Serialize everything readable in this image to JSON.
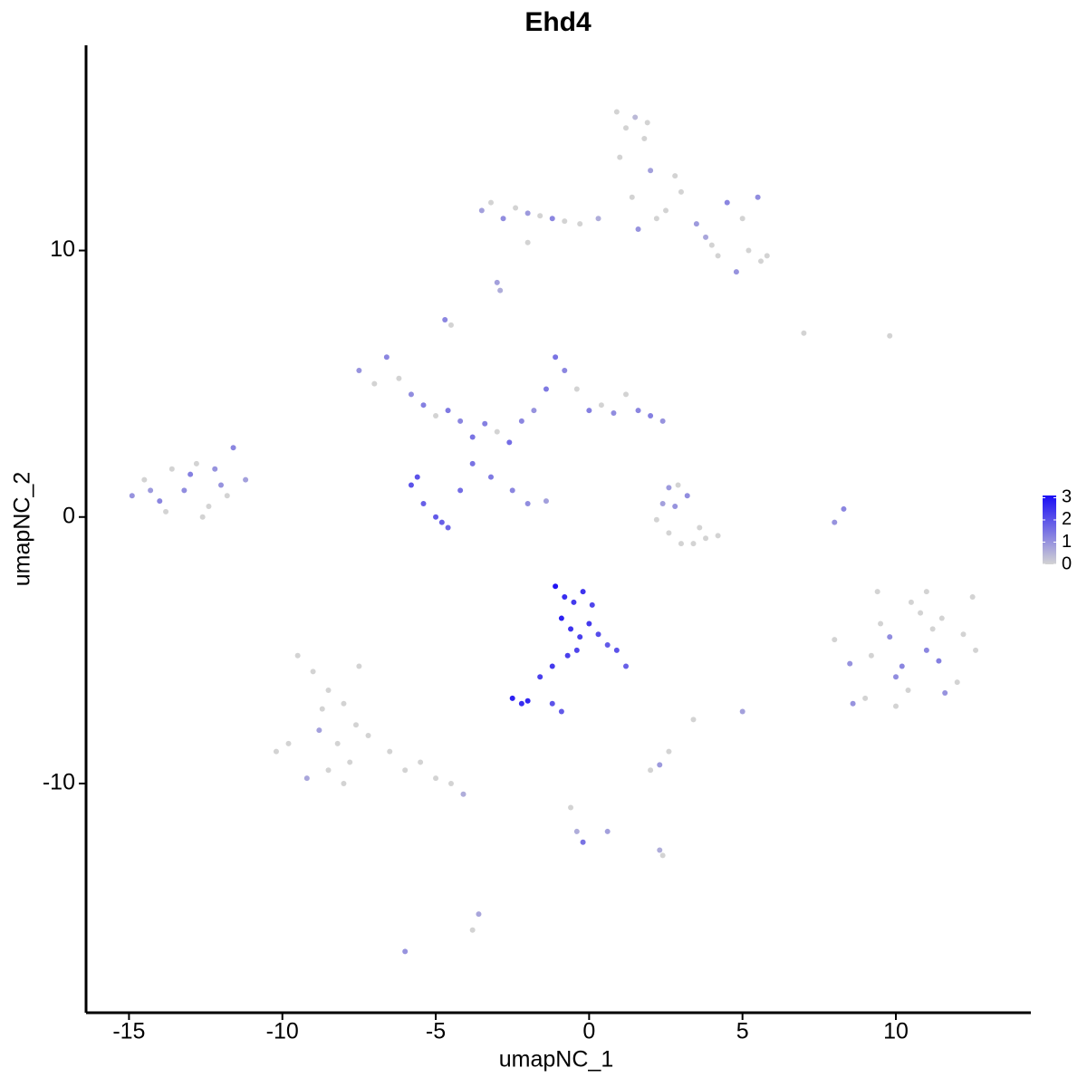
{
  "chart_data": {
    "type": "scatter",
    "title": "Ehd4",
    "x_label": "umapNC_1",
    "y_label": "umapNC_2",
    "xlim": [
      -16.4,
      14.4
    ],
    "ylim": [
      -18.6,
      17.7
    ],
    "xticks": [
      -15,
      -10,
      -5,
      0,
      5,
      10
    ],
    "yticks": [
      -10,
      0,
      10
    ],
    "color_low": "#d3d3d3",
    "color_high": "#1a0df5",
    "colorlim": [
      0,
      3.1
    ],
    "colorbar_ticks": [
      0,
      1,
      2,
      3
    ],
    "x": [
      0.9,
      1.2,
      1.5,
      1.0,
      1.8,
      2.0,
      1.4,
      2.2,
      1.6,
      2.5,
      3.0,
      3.5,
      4.0,
      4.5,
      5.0,
      5.5,
      5.8,
      4.8,
      4.2,
      3.8,
      5.2,
      5.6,
      2.8,
      1.9,
      -3.5,
      -3.2,
      -2.8,
      -2.4,
      -2.0,
      -1.6,
      -1.2,
      -0.8,
      -0.3,
      0.3,
      -2.0,
      -3.0,
      -2.9,
      -7.5,
      -7.0,
      -6.6,
      -6.2,
      -5.8,
      -5.4,
      -5.0,
      -4.6,
      -4.2,
      -3.8,
      -3.4,
      -3.0,
      -2.6,
      -2.2,
      -1.8,
      -1.4,
      -1.1,
      -0.8,
      -0.4,
      0.0,
      0.4,
      0.8,
      1.2,
      1.6,
      2.0,
      2.4,
      -4.7,
      -4.5,
      -3.2,
      -2.5,
      -5.8,
      -5.4,
      -5.0,
      -4.6,
      -4.2,
      -3.8,
      -5.6,
      -4.8,
      -2.0,
      -1.4,
      -14.9,
      -14.5,
      -14.0,
      -13.6,
      -13.2,
      -12.8,
      -12.4,
      -12.0,
      -11.6,
      -11.2,
      -13.8,
      -13.0,
      -12.6,
      -12.2,
      -14.3,
      -11.8,
      2.2,
      2.6,
      3.0,
      3.4,
      3.8,
      4.2,
      2.8,
      3.2,
      2.9,
      2.6,
      3.6,
      2.4,
      8.0,
      8.5,
      9.0,
      9.5,
      10.0,
      10.5,
      11.0,
      11.5,
      12.0,
      12.5,
      8.6,
      9.2,
      9.8,
      10.4,
      11.0,
      11.6,
      12.2,
      10.2,
      10.8,
      11.4,
      9.4,
      10.0,
      11.2,
      12.6,
      -1.1,
      -0.8,
      -0.5,
      -0.2,
      0.1,
      -0.9,
      -0.6,
      -0.3,
      0.0,
      0.3,
      0.6,
      0.9,
      1.2,
      -0.4,
      -0.7,
      -1.2,
      -1.6,
      -2.5,
      -2.2,
      -2.0,
      -1.2,
      -0.9,
      -9.5,
      -9.0,
      -8.5,
      -8.0,
      -7.5,
      -8.8,
      -8.2,
      -7.6,
      -9.8,
      -10.2,
      -7.2,
      -8.5,
      -9.2,
      -8.0,
      -7.8,
      -6.5,
      -6.0,
      -5.5,
      -5.0,
      -4.5,
      -4.1,
      -8.7,
      2.3,
      2.6,
      2.0,
      5.0,
      3.4,
      8.3,
      8.0,
      -0.6,
      -0.4,
      -0.2,
      0.6,
      2.3,
      2.4,
      -3.6,
      -3.8,
      -6.0,
      7.0,
      9.8
    ],
    "values": [
      15.2,
      14.6,
      15.0,
      13.5,
      14.2,
      13.0,
      12.0,
      11.2,
      10.8,
      11.5,
      12.2,
      11.0,
      10.2,
      11.8,
      11.2,
      12.0,
      9.8,
      9.2,
      9.8,
      10.5,
      10.0,
      9.6,
      12.8,
      14.8,
      11.5,
      11.8,
      11.2,
      11.6,
      11.4,
      11.3,
      11.2,
      11.1,
      11.0,
      11.2,
      10.3,
      8.8,
      8.5,
      5.5,
      5.0,
      6.0,
      5.2,
      4.6,
      4.2,
      3.8,
      4.0,
      3.6,
      3.0,
      3.5,
      3.2,
      2.8,
      3.6,
      4.0,
      4.8,
      6.0,
      5.5,
      4.8,
      4.0,
      4.2,
      3.9,
      4.6,
      4.0,
      3.8,
      3.6,
      7.4,
      7.2,
      1.5,
      1.0,
      1.2,
      0.5,
      0.0,
      -0.4,
      1.0,
      2.0,
      1.5,
      -0.2,
      0.5,
      0.6,
      0.8,
      1.4,
      0.6,
      1.8,
      1.0,
      2.0,
      0.4,
      1.2,
      2.6,
      1.4,
      0.2,
      1.6,
      0.0,
      1.8,
      1.0,
      0.8,
      -0.1,
      -0.6,
      -1.0,
      -1.0,
      -0.8,
      -0.7,
      0.4,
      0.8,
      1.2,
      1.1,
      -0.4,
      0.5,
      -4.6,
      -5.5,
      -6.8,
      -4.0,
      -6.0,
      -3.2,
      -5.0,
      -3.8,
      -6.2,
      -3.0,
      -7.0,
      -5.2,
      -4.5,
      -6.5,
      -2.8,
      -6.6,
      -4.4,
      -5.6,
      -3.6,
      -5.4,
      -2.8,
      -7.1,
      -4.2,
      -5.0,
      -2.6,
      -3.0,
      -3.2,
      -2.8,
      -3.3,
      -3.8,
      -4.2,
      -4.5,
      -4.0,
      -4.4,
      -4.8,
      -5.0,
      -5.6,
      -5.0,
      -5.2,
      -5.6,
      -6.0,
      -6.8,
      -7.0,
      -6.9,
      -7.0,
      -7.3,
      -5.2,
      -5.8,
      -6.5,
      -7.0,
      -5.6,
      -8.0,
      -8.5,
      -7.8,
      -8.5,
      -8.8,
      -8.2,
      -9.5,
      -9.8,
      -10.0,
      -9.2,
      -8.8,
      -9.5,
      -9.2,
      -9.8,
      -10.0,
      -10.4,
      -7.2,
      -9.3,
      -8.8,
      -9.5,
      -7.3,
      -7.6,
      0.3,
      -0.2,
      -10.9,
      -11.8,
      -12.2,
      -11.8,
      -12.5,
      -12.7,
      -14.9,
      -15.5,
      -16.3,
      6.9,
      6.8
    ],
    "expression": [
      0,
      0,
      0.4,
      0,
      0,
      0.8,
      0,
      0,
      1.0,
      0,
      0,
      0.9,
      0,
      1.2,
      0,
      1.1,
      0,
      1.0,
      0,
      0.7,
      0,
      0,
      0,
      0,
      0.8,
      0,
      1.1,
      0,
      0.9,
      0,
      1.2,
      0,
      0,
      0.6,
      0,
      0.8,
      0.6,
      1.0,
      0,
      1.2,
      0,
      1.1,
      1.3,
      0,
      1.4,
      1.2,
      1.5,
      1.3,
      0,
      1.6,
      1.2,
      1.0,
      1.4,
      1.5,
      1.2,
      0,
      1.3,
      0,
      1.1,
      0,
      1.2,
      1.3,
      1.0,
      1.2,
      0,
      1.4,
      1.2,
      2.0,
      1.8,
      1.9,
      1.7,
      1.6,
      1.5,
      2.0,
      1.8,
      1.1,
      0.8,
      1.0,
      0,
      1.2,
      0,
      1.1,
      0,
      0,
      1.0,
      1.2,
      0.8,
      0,
      1.3,
      0,
      1.0,
      0.9,
      0,
      0,
      0,
      0,
      0,
      0,
      0,
      1.0,
      1.1,
      0,
      0.9,
      0,
      0.8,
      0,
      1.0,
      0,
      0,
      1.1,
      0,
      1.2,
      0,
      0,
      0,
      1.0,
      0,
      1.1,
      0,
      0,
      1.0,
      0,
      1.2,
      0,
      1.3,
      0,
      0,
      0,
      0,
      3.0,
      2.6,
      2.4,
      2.5,
      2.2,
      2.8,
      2.5,
      2.3,
      2.4,
      2.1,
      1.9,
      2.0,
      1.8,
      2.2,
      2.3,
      2.4,
      2.3,
      2.8,
      2.6,
      2.7,
      2.0,
      1.9,
      0,
      0,
      0,
      0,
      0,
      0.8,
      0,
      0,
      0,
      0,
      0,
      0,
      0.7,
      0,
      0,
      0,
      0,
      0,
      0,
      0,
      0.6,
      0,
      0.9,
      0,
      0,
      0.8,
      0,
      1.2,
      1.0,
      0,
      0.6,
      1.5,
      0.8,
      0.6,
      0,
      0.7,
      0,
      1.0,
      0,
      0
    ]
  }
}
